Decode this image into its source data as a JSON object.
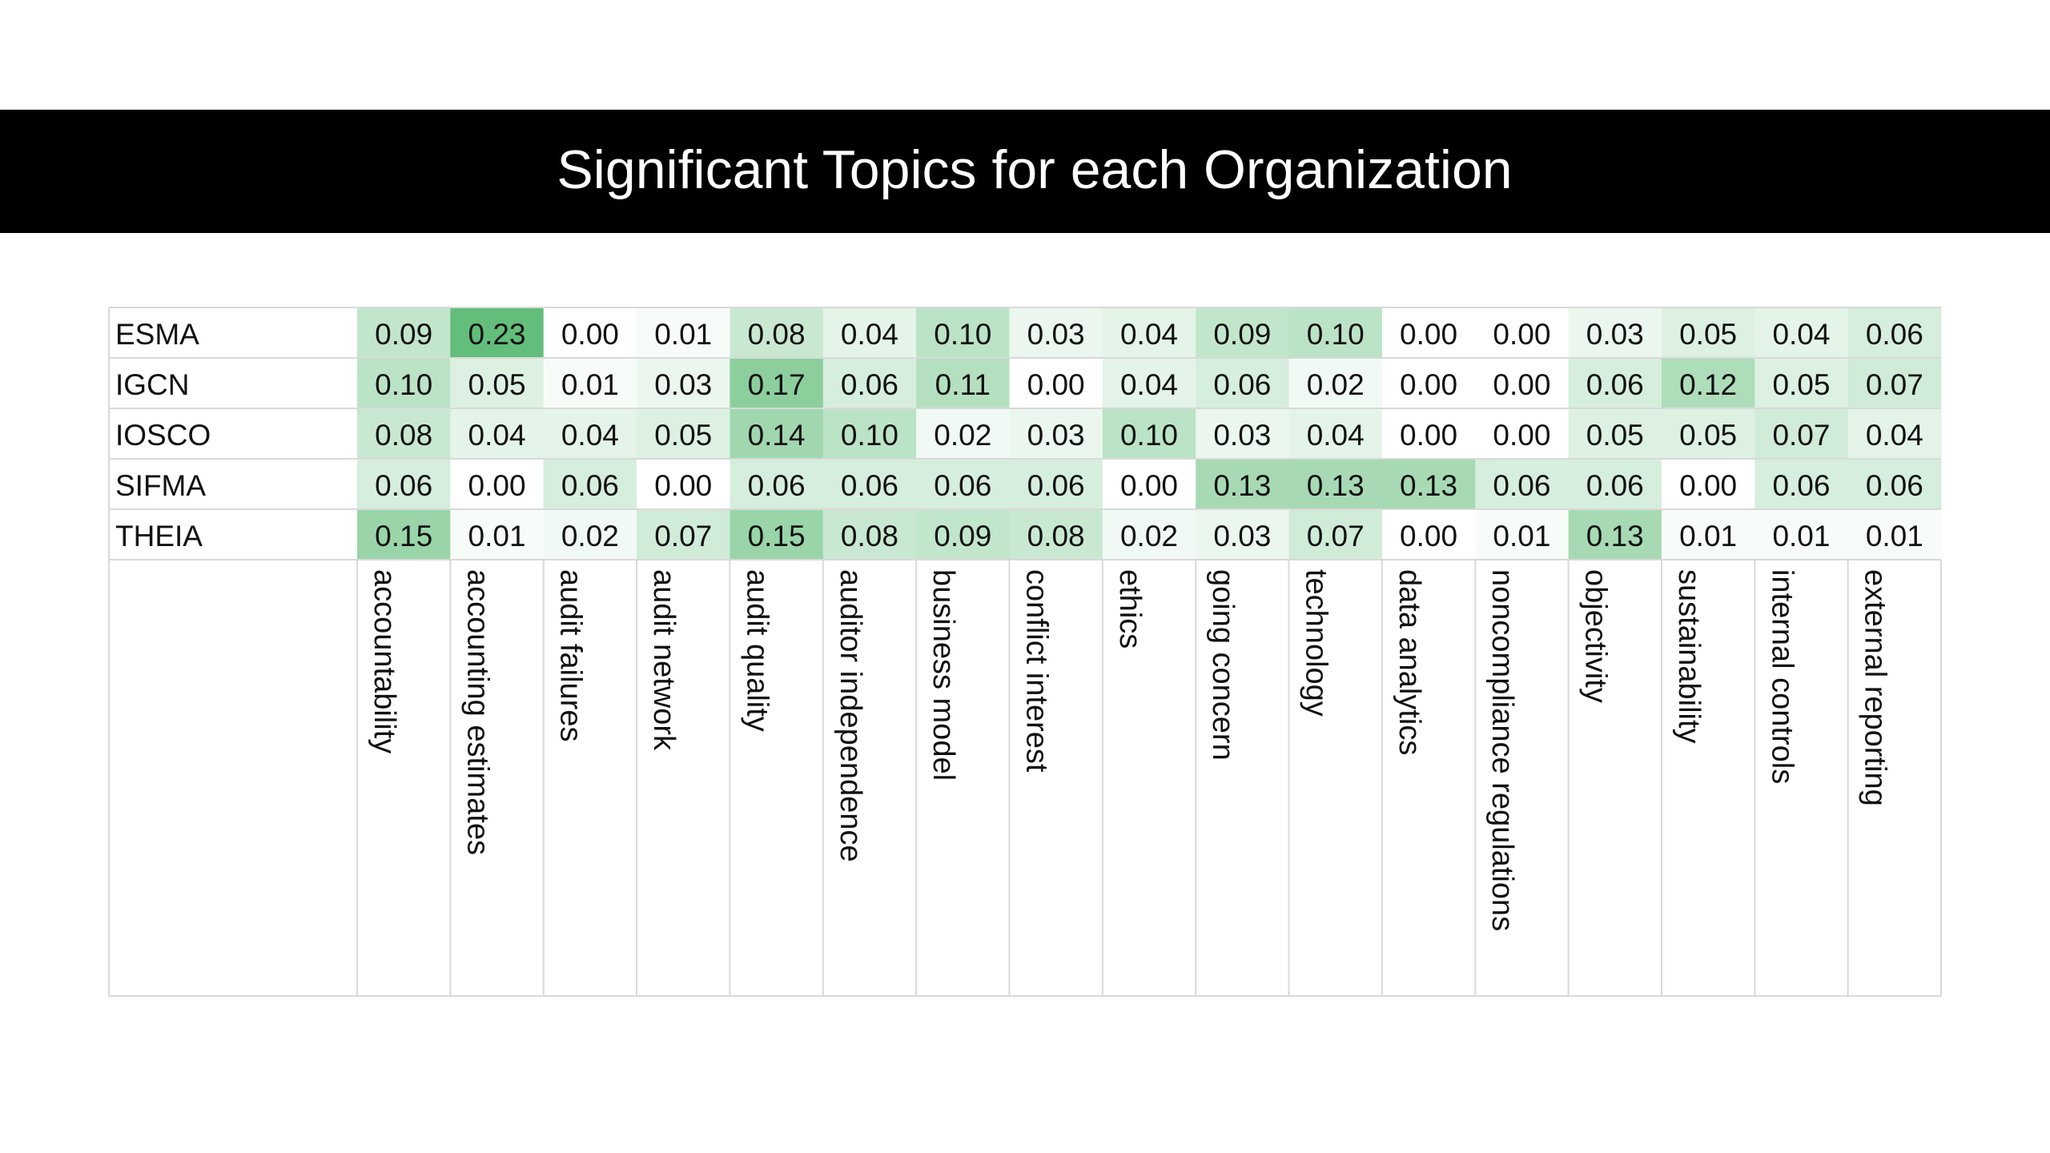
{
  "chart_data": {
    "type": "heatmap",
    "title": "Significant Topics for each Organization",
    "rows": [
      "ESMA",
      "IGCN",
      "IOSCO",
      "SIFMA",
      "THEIA"
    ],
    "columns": [
      "accountability",
      "accounting estimates",
      "audit failures",
      "audit network",
      "audit quality",
      "auditor independence",
      "business model",
      "conflict interest",
      "ethics",
      "going concern",
      "technology",
      "data analytics",
      "noncompliance regulations",
      "objectivity",
      "sustainability",
      "internal controls",
      "external reporting"
    ],
    "values": [
      [
        0.09,
        0.23,
        0.0,
        0.01,
        0.08,
        0.04,
        0.1,
        0.03,
        0.04,
        0.09,
        0.1,
        0.0,
        0.0,
        0.03,
        0.05,
        0.04,
        0.06
      ],
      [
        0.1,
        0.05,
        0.01,
        0.03,
        0.17,
        0.06,
        0.11,
        0.0,
        0.04,
        0.06,
        0.02,
        0.0,
        0.0,
        0.06,
        0.12,
        0.05,
        0.07
      ],
      [
        0.08,
        0.04,
        0.04,
        0.05,
        0.14,
        0.1,
        0.02,
        0.03,
        0.1,
        0.03,
        0.04,
        0.0,
        0.0,
        0.05,
        0.05,
        0.07,
        0.04
      ],
      [
        0.06,
        0.0,
        0.06,
        0.0,
        0.06,
        0.06,
        0.06,
        0.06,
        0.0,
        0.13,
        0.13,
        0.13,
        0.06,
        0.06,
        0.0,
        0.06,
        0.06
      ],
      [
        0.15,
        0.01,
        0.02,
        0.07,
        0.15,
        0.08,
        0.09,
        0.08,
        0.02,
        0.03,
        0.07,
        0.0,
        0.01,
        0.13,
        0.01,
        0.01,
        0.01
      ]
    ],
    "value_labels": [
      [
        "0.09",
        "0.23",
        "0.00",
        "0.01",
        "0.08",
        "0.04",
        "0.10",
        "0.03",
        "0.04",
        "0.09",
        "0.10",
        "0.00",
        "0.00",
        "0.03",
        "0.05",
        "0.04",
        "0.06"
      ],
      [
        "0.10",
        "0.05",
        "0.01",
        "0.03",
        "0.17",
        "0.06",
        "0.11",
        "0.00",
        "0.04",
        "0.06",
        "0.02",
        "0.00",
        "0.00",
        "0.06",
        "0.12",
        "0.05",
        "0.07"
      ],
      [
        "0.08",
        "0.04",
        "0.04",
        "0.05",
        "0.14",
        "0.10",
        "0.02",
        "0.03",
        "0.10",
        "0.03",
        "0.04",
        "0.00",
        "0.00",
        "0.05",
        "0.05",
        "0.07",
        "0.04"
      ],
      [
        "0.06",
        "0.00",
        "0.06",
        "0.00",
        "0.06",
        "0.06",
        "0.06",
        "0.06",
        "0.00",
        "0.13",
        "0.13",
        "0.13",
        "0.06",
        "0.06",
        "0.00",
        "0.06",
        "0.06"
      ],
      [
        "0.15",
        "0.01",
        "0.02",
        "0.07",
        "0.15",
        "0.08",
        "0.09",
        "0.08",
        "0.02",
        "0.03",
        "0.07",
        "0.00",
        "0.01",
        "0.13",
        "0.01",
        "0.01",
        "0.01"
      ]
    ],
    "color_min": "#ffffff",
    "color_max": "#63be7b"
  }
}
